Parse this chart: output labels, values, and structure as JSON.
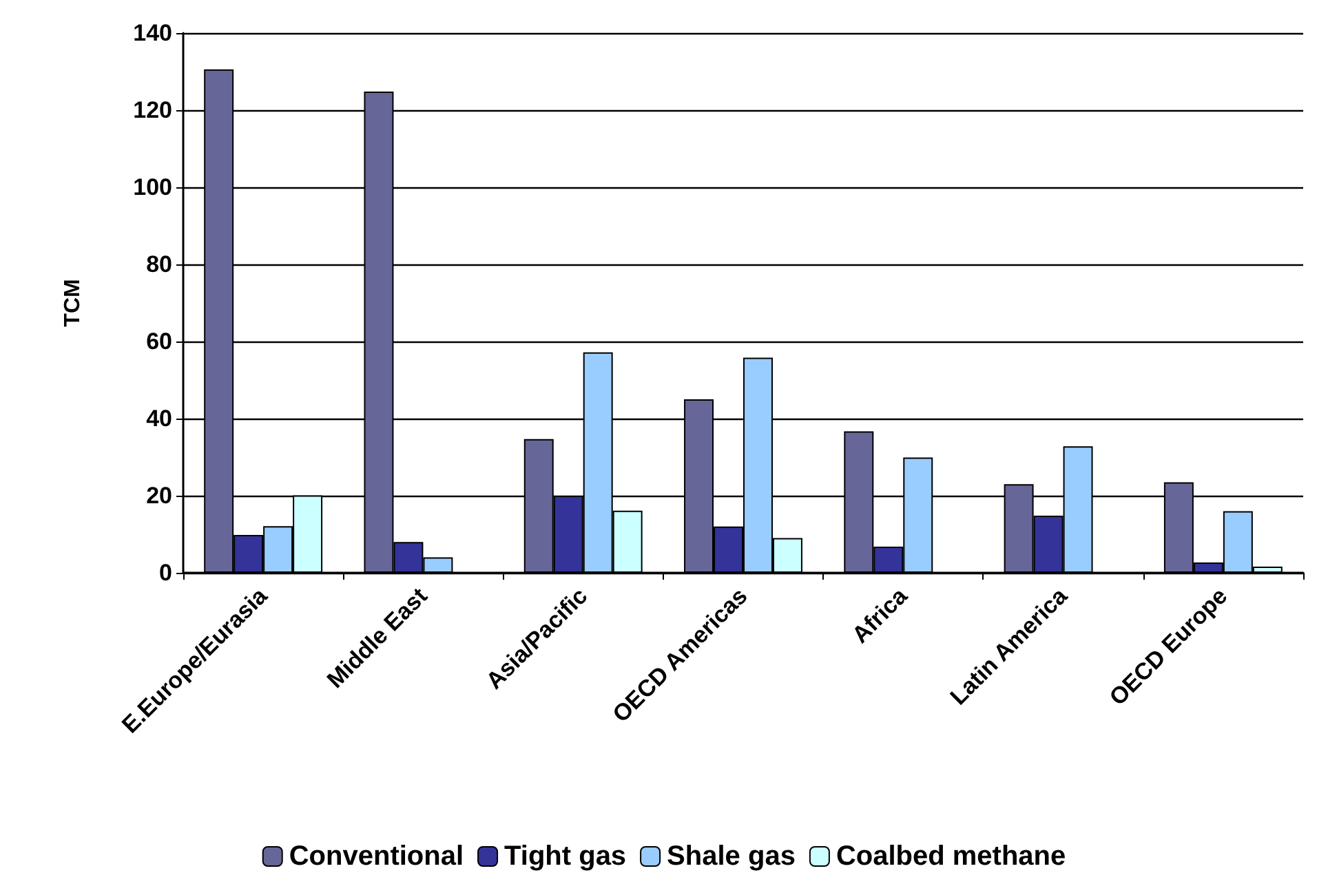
{
  "chart_data": {
    "type": "bar",
    "ylabel": "TCM",
    "categories": [
      "E.Europe/Eurasia",
      "Middle East",
      "Asia/Pacific",
      "OECD Americas",
      "Africa",
      "Latin America",
      "OECD Europe"
    ],
    "series": [
      {
        "name": "Conventional",
        "color": "#666699",
        "values": [
          130.6,
          124.8,
          34.7,
          45,
          36.7,
          23,
          23.5
        ]
      },
      {
        "name": "Tight gas",
        "color": "#333399",
        "values": [
          9.8,
          8,
          20,
          12,
          6.8,
          14.8,
          2.7
        ]
      },
      {
        "name": "Shale gas",
        "color": "#99ccff",
        "values": [
          12.1,
          4,
          57.2,
          55.8,
          29.9,
          32.8,
          16
        ]
      },
      {
        "name": "Coalbed methane",
        "color": "#ccffff",
        "values": [
          20.1,
          null,
          16.1,
          9,
          null,
          null,
          1.6
        ]
      }
    ],
    "ylim": [
      0,
      140
    ],
    "yticks": [
      0,
      20,
      40,
      60,
      80,
      100,
      120,
      140
    ],
    "grid": "y",
    "legend": "bottom"
  }
}
